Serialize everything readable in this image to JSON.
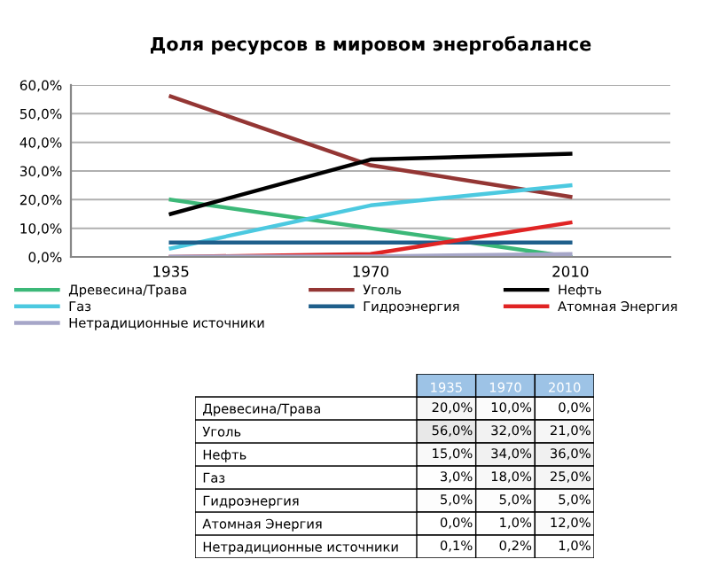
{
  "chart_data": [
    {
      "type": "line",
      "title": "Доля ресурсов в мировом энергобалансе",
      "categories": [
        "1935",
        "1970",
        "2010"
      ],
      "ylim": [
        0,
        60
      ],
      "yticks": [
        {
          "value": 0,
          "label": "0,0%"
        },
        {
          "value": 10,
          "label": "10,0%"
        },
        {
          "value": 20,
          "label": "20,0%"
        },
        {
          "value": 30,
          "label": "30,0%"
        },
        {
          "value": 40,
          "label": "40,0%"
        },
        {
          "value": 50,
          "label": "50,0%"
        },
        {
          "value": 60,
          "label": "60,0%"
        }
      ],
      "grid": "y",
      "legend": "bottom",
      "marker": "none",
      "line_style": "solid",
      "series": [
        {
          "name": "Древесина/Трава",
          "color": "#3cb878",
          "values": [
            20,
            10,
            0
          ]
        },
        {
          "name": "Уголь",
          "color": "#943634",
          "values": [
            56,
            32,
            21
          ]
        },
        {
          "name": "Нефть",
          "color": "#000000",
          "values": [
            15,
            34,
            36
          ]
        },
        {
          "name": "Газ",
          "color": "#4cc9e0",
          "values": [
            3,
            18,
            25
          ]
        },
        {
          "name": "Гидроэнергия",
          "color": "#1f5f8b",
          "values": [
            5,
            5,
            5
          ]
        },
        {
          "name": "Атомная Энергия",
          "color": "#e02424",
          "values": [
            0,
            1,
            12
          ]
        },
        {
          "name": "Нетрадиционные источники",
          "color": "#a6a6c8",
          "values": [
            0.1,
            0.2,
            1
          ]
        }
      ]
    },
    {
      "type": "heatmap",
      "categories": [
        "1935",
        "1970",
        "2010"
      ],
      "y_categories": [
        "Древесина/Трава",
        "Уголь",
        "Нефть",
        "Газ",
        "Гидроэнергия",
        "Атомная Энергия",
        "Нетрадиционные источники"
      ],
      "cells": [
        [
          20,
          10,
          0
        ],
        [
          56,
          32,
          21
        ],
        [
          15,
          34,
          36
        ],
        [
          3,
          18,
          25
        ],
        [
          5,
          5,
          5
        ],
        [
          0,
          1,
          12
        ],
        [
          0.1,
          0.2,
          1
        ]
      ],
      "cell_labels": [
        [
          "20,0%",
          "10,0%",
          "0,0%"
        ],
        [
          "56,0%",
          "32,0%",
          "21,0%"
        ],
        [
          "15,0%",
          "34,0%",
          "36,0%"
        ],
        [
          "3,0%",
          "18,0%",
          "25,0%"
        ],
        [
          "5,0%",
          "5,0%",
          "5,0%"
        ],
        [
          "0,0%",
          "1,0%",
          "12,0%"
        ],
        [
          "0,1%",
          "0,2%",
          "1,0%"
        ]
      ]
    }
  ]
}
